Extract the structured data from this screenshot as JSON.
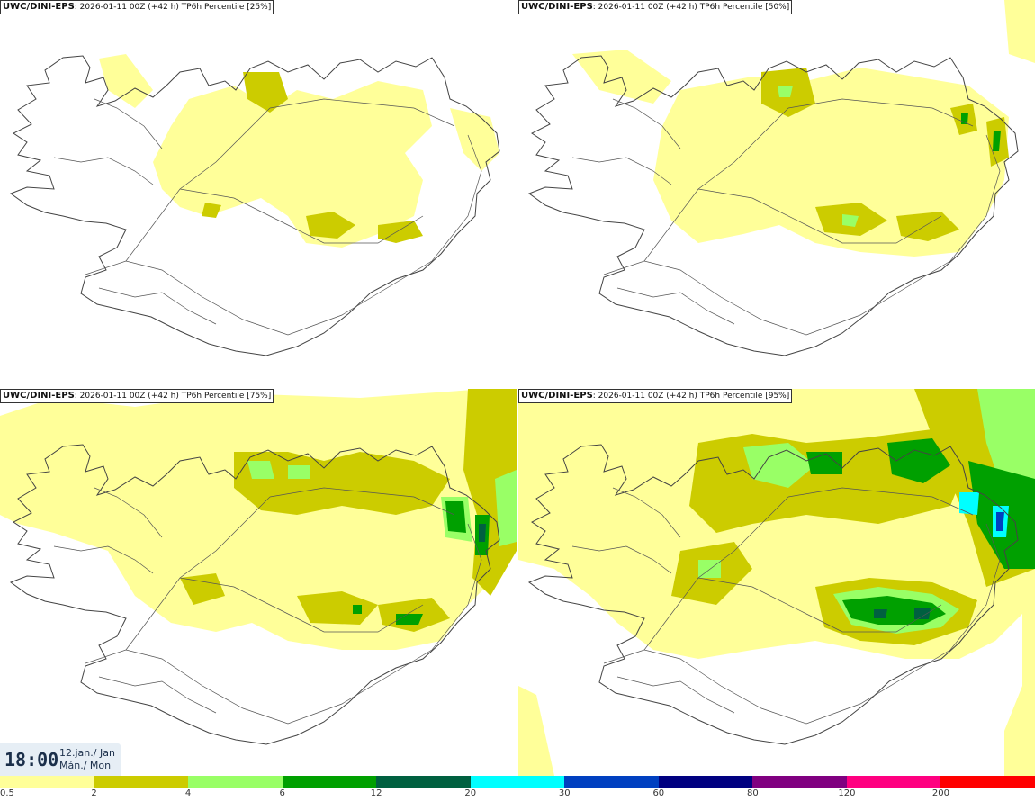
{
  "panels": [
    {
      "model": "UWC/DINI-EPS",
      "info": ": 2026-01-11 00Z (+42 h) TP6h Percentile [25%]",
      "level": 1
    },
    {
      "model": "UWC/DINI-EPS",
      "info": ": 2026-01-11 00Z (+42 h) TP6h Percentile [50%]",
      "level": 2
    },
    {
      "model": "UWC/DINI-EPS",
      "info": ": 2026-01-11 00Z (+42 h) TP6h Percentile [75%]",
      "level": 3
    },
    {
      "model": "UWC/DINI-EPS",
      "info": ": 2026-01-11 00Z (+42 h) TP6h Percentile [95%]",
      "level": 4
    }
  ],
  "time": {
    "clock": "18:00",
    "date_line1": "12.jan./ Jan",
    "date_line2": "Mán./ Mon"
  },
  "colorbar": {
    "colors": [
      "#ffff99",
      "#cccc00",
      "#99ff66",
      "#00a000",
      "#006040",
      "#00ffff",
      "#0040c0",
      "#000080",
      "#800080",
      "#ff0080",
      "#ff0000"
    ],
    "ticks": [
      "0.5",
      "2",
      "4",
      "6",
      "12",
      "20",
      "30",
      "60",
      "80",
      "120",
      "200"
    ]
  }
}
